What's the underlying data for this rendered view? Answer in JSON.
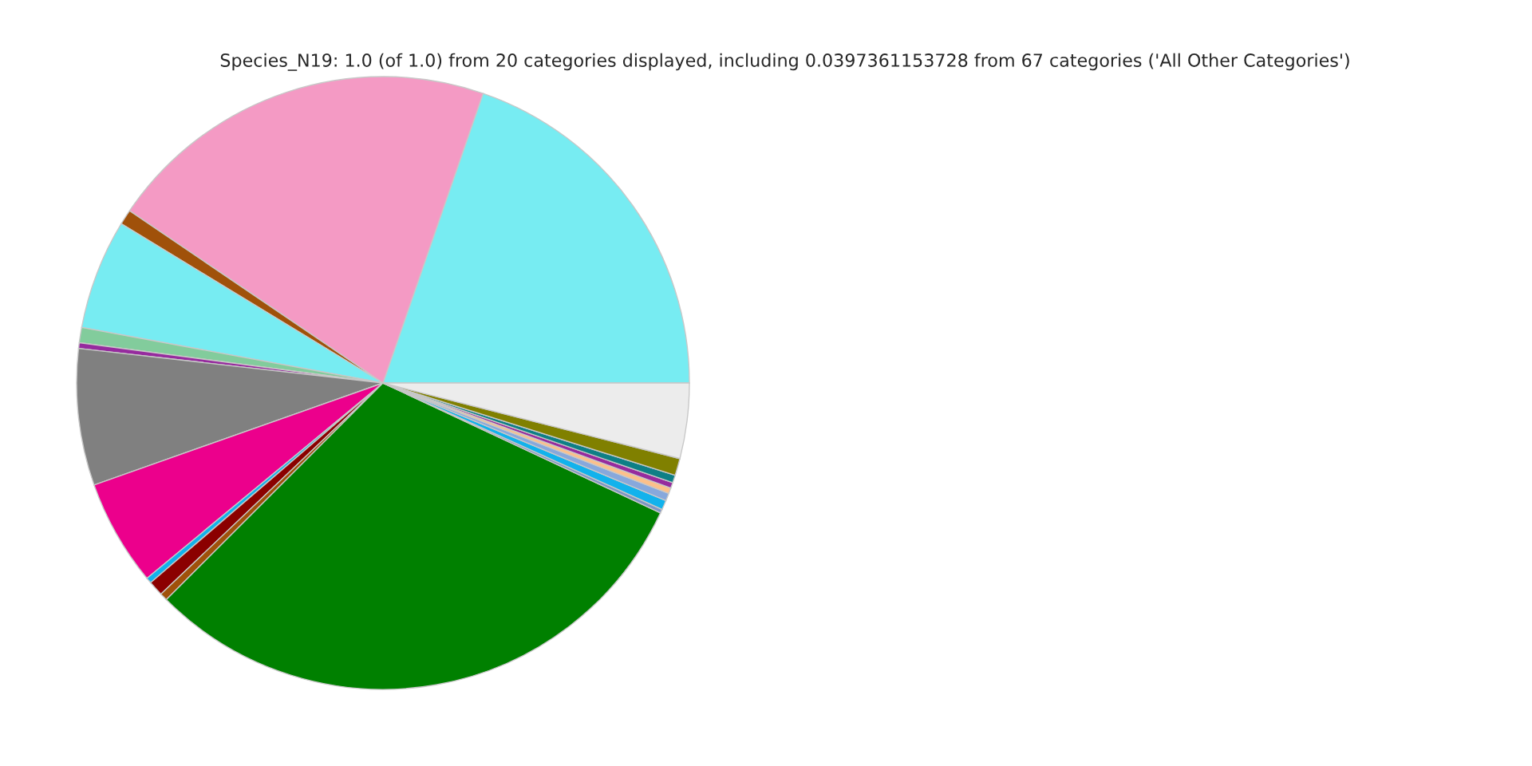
{
  "chart_data": {
    "type": "pie",
    "title": "Species_N19: 1.0 (of 1.0) from 20 categories displayed, including 0.0397361153728 from 67 categories ('All Other Categories')",
    "categories": [
      null,
      null,
      null,
      null,
      null,
      null,
      null,
      null,
      null,
      null,
      null,
      null,
      null,
      null,
      null,
      null,
      null,
      null,
      null,
      null
    ],
    "values": [
      19.7,
      20.8,
      0.8,
      5.8,
      0.8,
      0.3,
      7.2,
      5.6,
      0.3,
      0.8,
      0.4,
      30.53,
      0.2,
      0.5,
      0.4,
      0.3,
      0.3,
      0.4,
      0.9,
      3.97
    ],
    "colors": [
      "#77ecf2",
      "#f49ac4",
      "#a0510a",
      "#77ecf2",
      "#82cc9c",
      "#962b9e",
      "#808080",
      "#ec008c",
      "#12b2ec",
      "#8b0000",
      "#a0510a",
      "#008000",
      "#7d95c4",
      "#12b2ec",
      "#87a8dc",
      "#fcc08a",
      "#962b9e",
      "#0e7f86",
      "#808000",
      "#ececec"
    ]
  }
}
